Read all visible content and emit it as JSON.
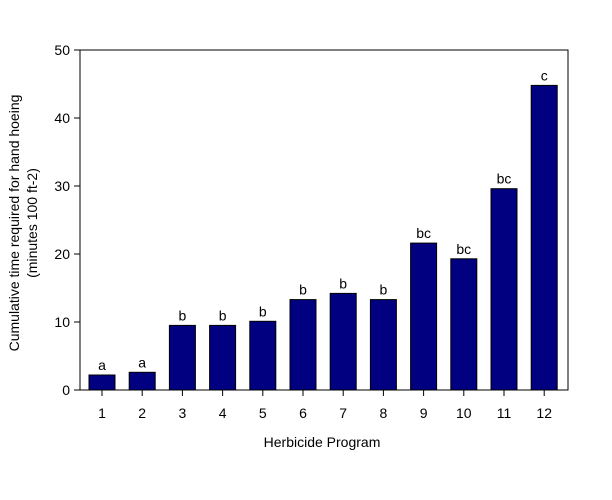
{
  "chart_data": {
    "type": "bar",
    "title": "",
    "xlabel": "Herbicide Program",
    "ylabel_line1": "Cumulative time required for hand hoeing",
    "ylabel_line2": "(minutes 100 ft-2)",
    "categories": [
      "1",
      "2",
      "3",
      "4",
      "5",
      "6",
      "7",
      "8",
      "9",
      "10",
      "11",
      "12"
    ],
    "values": [
      2.2,
      2.6,
      9.5,
      9.5,
      10.1,
      13.3,
      14.2,
      13.3,
      21.6,
      19.3,
      29.6,
      44.8
    ],
    "letters": [
      "a",
      "a",
      "b",
      "b",
      "b",
      "b",
      "b",
      "b",
      "bc",
      "bc",
      "bc",
      "c"
    ],
    "ylim": [
      0,
      50
    ],
    "yticks": [
      "0",
      "10",
      "20",
      "30",
      "40",
      "50"
    ],
    "grid": false,
    "bar_color": "#000080"
  }
}
